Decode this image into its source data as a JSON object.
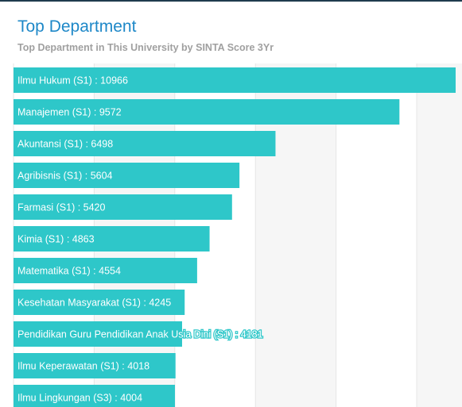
{
  "header": {
    "title": "Top Department",
    "subtitle": "Top Department in This University by SINTA Score 3Yr"
  },
  "colors": {
    "bar": "#2ec7c9",
    "title": "#1e88c8",
    "subtitle": "#a0a0a0",
    "grid_band": "#f6f6f6",
    "grid_line": "#e6e6e6"
  },
  "chart_data": {
    "type": "bar",
    "orientation": "horizontal",
    "title": "Top Department",
    "subtitle": "Top Department in This University by SINTA Score 3Yr",
    "categories": [
      "Ilmu Hukum (S1)",
      "Manajemen (S1)",
      "Akuntansi (S1)",
      "Agribisnis (S1)",
      "Farmasi (S1)",
      "Kimia (S1)",
      "Matematika (S1)",
      "Kesehatan Masyarakat (S1)",
      "Pendidikan Guru Pendidikan Anak Usia Dini (S1)",
      "Ilmu Keperawatan (S1)",
      "Ilmu Lingkungan (S3)"
    ],
    "values": [
      10966,
      9572,
      6498,
      5604,
      5420,
      4863,
      4554,
      4245,
      4181,
      4018,
      4004
    ],
    "label_separator": " : ",
    "xlim": [
      0,
      11000
    ],
    "grid": true,
    "legend": "none"
  }
}
